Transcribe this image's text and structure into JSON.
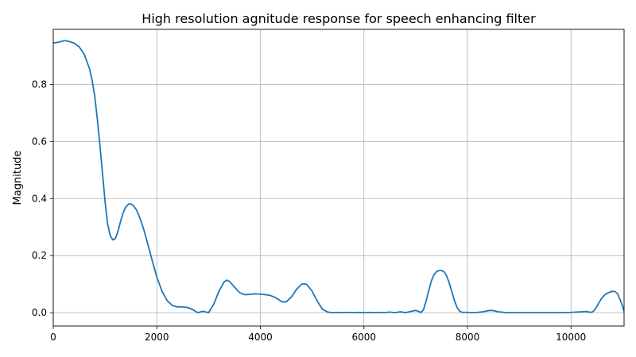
{
  "colors": {
    "line": "#1f77b4",
    "grid": "#b0b0b0",
    "axes": "#000000",
    "background": "#ffffff"
  },
  "chart_data": {
    "type": "line",
    "title": "High resolution agnitude response for speech enhancing filter",
    "xlabel": "",
    "ylabel": "Magnitude",
    "xlim": [
      0,
      11025
    ],
    "ylim": [
      -0.047,
      0.993
    ],
    "grid": true,
    "legend": "none",
    "x_ticks": [
      {
        "value": 0,
        "label": "0"
      },
      {
        "value": 2000,
        "label": "2000"
      },
      {
        "value": 4000,
        "label": "4000"
      },
      {
        "value": 6000,
        "label": "6000"
      },
      {
        "value": 8000,
        "label": "8000"
      },
      {
        "value": 10000,
        "label": "10000"
      }
    ],
    "y_ticks": [
      {
        "value": 0.0,
        "label": "0.0"
      },
      {
        "value": 0.2,
        "label": "0.2"
      },
      {
        "value": 0.4,
        "label": "0.4"
      },
      {
        "value": 0.6,
        "label": "0.6"
      },
      {
        "value": 0.8,
        "label": "0.8"
      }
    ],
    "series": [
      {
        "x": [
          0,
          100,
          200,
          250,
          300,
          400,
          500,
          600,
          700,
          750,
          800,
          850,
          900,
          950,
          1000,
          1050,
          1100,
          1150,
          1200,
          1250,
          1300,
          1350,
          1400,
          1450,
          1500,
          1550,
          1600,
          1650,
          1700,
          1750,
          1800,
          1900,
          2000,
          2100,
          2200,
          2300,
          2400,
          2500,
          2600,
          2700,
          2750,
          2800,
          2850,
          2900,
          2950,
          3000,
          3100,
          3200,
          3300,
          3350,
          3400,
          3500,
          3600,
          3700,
          3800,
          3900,
          4000,
          4100,
          4200,
          4300,
          4400,
          4450,
          4500,
          4600,
          4700,
          4800,
          4850,
          4900,
          5000,
          5100,
          5200,
          5300,
          5400,
          5500,
          5600,
          5700,
          5800,
          5900,
          6000,
          6100,
          6200,
          6300,
          6400,
          6500,
          6600,
          6700,
          6800,
          6900,
          7000,
          7050,
          7100,
          7150,
          7200,
          7250,
          7300,
          7350,
          7400,
          7450,
          7500,
          7550,
          7600,
          7650,
          7700,
          7750,
          7800,
          7850,
          7900,
          8000,
          8100,
          8200,
          8300,
          8400,
          8450,
          8500,
          8600,
          8700,
          8800,
          9000,
          9200,
          9400,
          9600,
          9800,
          10000,
          10100,
          10200,
          10300,
          10350,
          10400,
          10450,
          10500,
          10550,
          10600,
          10650,
          10700,
          10750,
          10800,
          10850,
          10900,
          10950,
          11000,
          11025
        ],
        "y": [
          0.945,
          0.948,
          0.953,
          0.953,
          0.951,
          0.945,
          0.932,
          0.905,
          0.855,
          0.815,
          0.76,
          0.68,
          0.59,
          0.49,
          0.39,
          0.31,
          0.27,
          0.255,
          0.26,
          0.285,
          0.32,
          0.35,
          0.37,
          0.38,
          0.381,
          0.375,
          0.362,
          0.343,
          0.318,
          0.29,
          0.258,
          0.19,
          0.125,
          0.075,
          0.042,
          0.025,
          0.02,
          0.02,
          0.018,
          0.01,
          0.004,
          0.0,
          0.003,
          0.005,
          0.002,
          0.0,
          0.03,
          0.075,
          0.108,
          0.114,
          0.11,
          0.09,
          0.07,
          0.063,
          0.064,
          0.066,
          0.065,
          0.063,
          0.06,
          0.052,
          0.04,
          0.037,
          0.038,
          0.055,
          0.082,
          0.1,
          0.101,
          0.098,
          0.075,
          0.04,
          0.012,
          0.002,
          0.0,
          0.001,
          0.0,
          0.001,
          0.0,
          0.001,
          0.0,
          0.001,
          0.0,
          0.001,
          0.0,
          0.002,
          0.0,
          0.003,
          0.0,
          0.004,
          0.008,
          0.005,
          0.0,
          0.01,
          0.04,
          0.075,
          0.11,
          0.132,
          0.143,
          0.148,
          0.148,
          0.143,
          0.128,
          0.103,
          0.072,
          0.042,
          0.018,
          0.005,
          0.001,
          0.001,
          0.0,
          0.001,
          0.003,
          0.007,
          0.008,
          0.007,
          0.003,
          0.001,
          0.0,
          0.0,
          0.0,
          0.0,
          0.0,
          0.0,
          0.001,
          0.002,
          0.003,
          0.004,
          0.002,
          0.001,
          0.008,
          0.022,
          0.038,
          0.052,
          0.062,
          0.068,
          0.072,
          0.075,
          0.074,
          0.066,
          0.045,
          0.02,
          0.005
        ]
      }
    ]
  }
}
